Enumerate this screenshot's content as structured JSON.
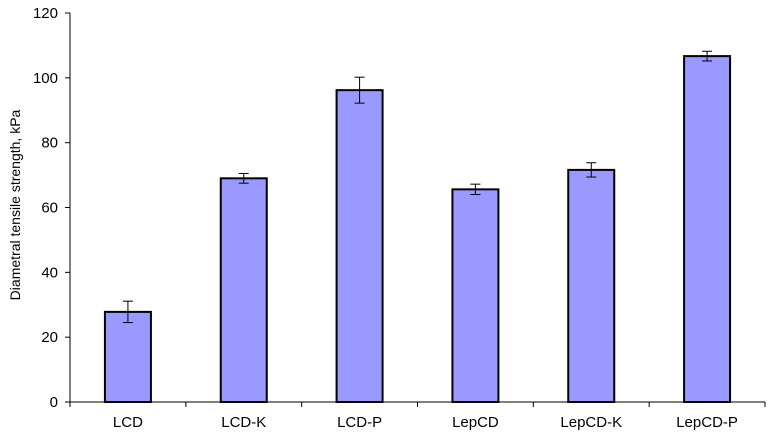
{
  "chart_data": {
    "type": "bar",
    "title": "",
    "xlabel": "",
    "ylabel": "Diametral tensile strength, kPa",
    "categories": [
      "LCD",
      "LCD-K",
      "LCD-P",
      "LepCD",
      "LepCD-K",
      "LepCD-P"
    ],
    "values": [
      27.8,
      69.0,
      96.2,
      65.6,
      71.6,
      106.7
    ],
    "error": [
      3.3,
      1.5,
      4.0,
      1.6,
      2.2,
      1.5
    ],
    "ylim": [
      0,
      120
    ],
    "yticks": [
      0,
      20,
      40,
      60,
      80,
      100,
      120
    ],
    "grid": false,
    "legend": "none",
    "colors": {
      "bar_fill": "#9999ff",
      "bar_stroke": "#000000"
    }
  }
}
